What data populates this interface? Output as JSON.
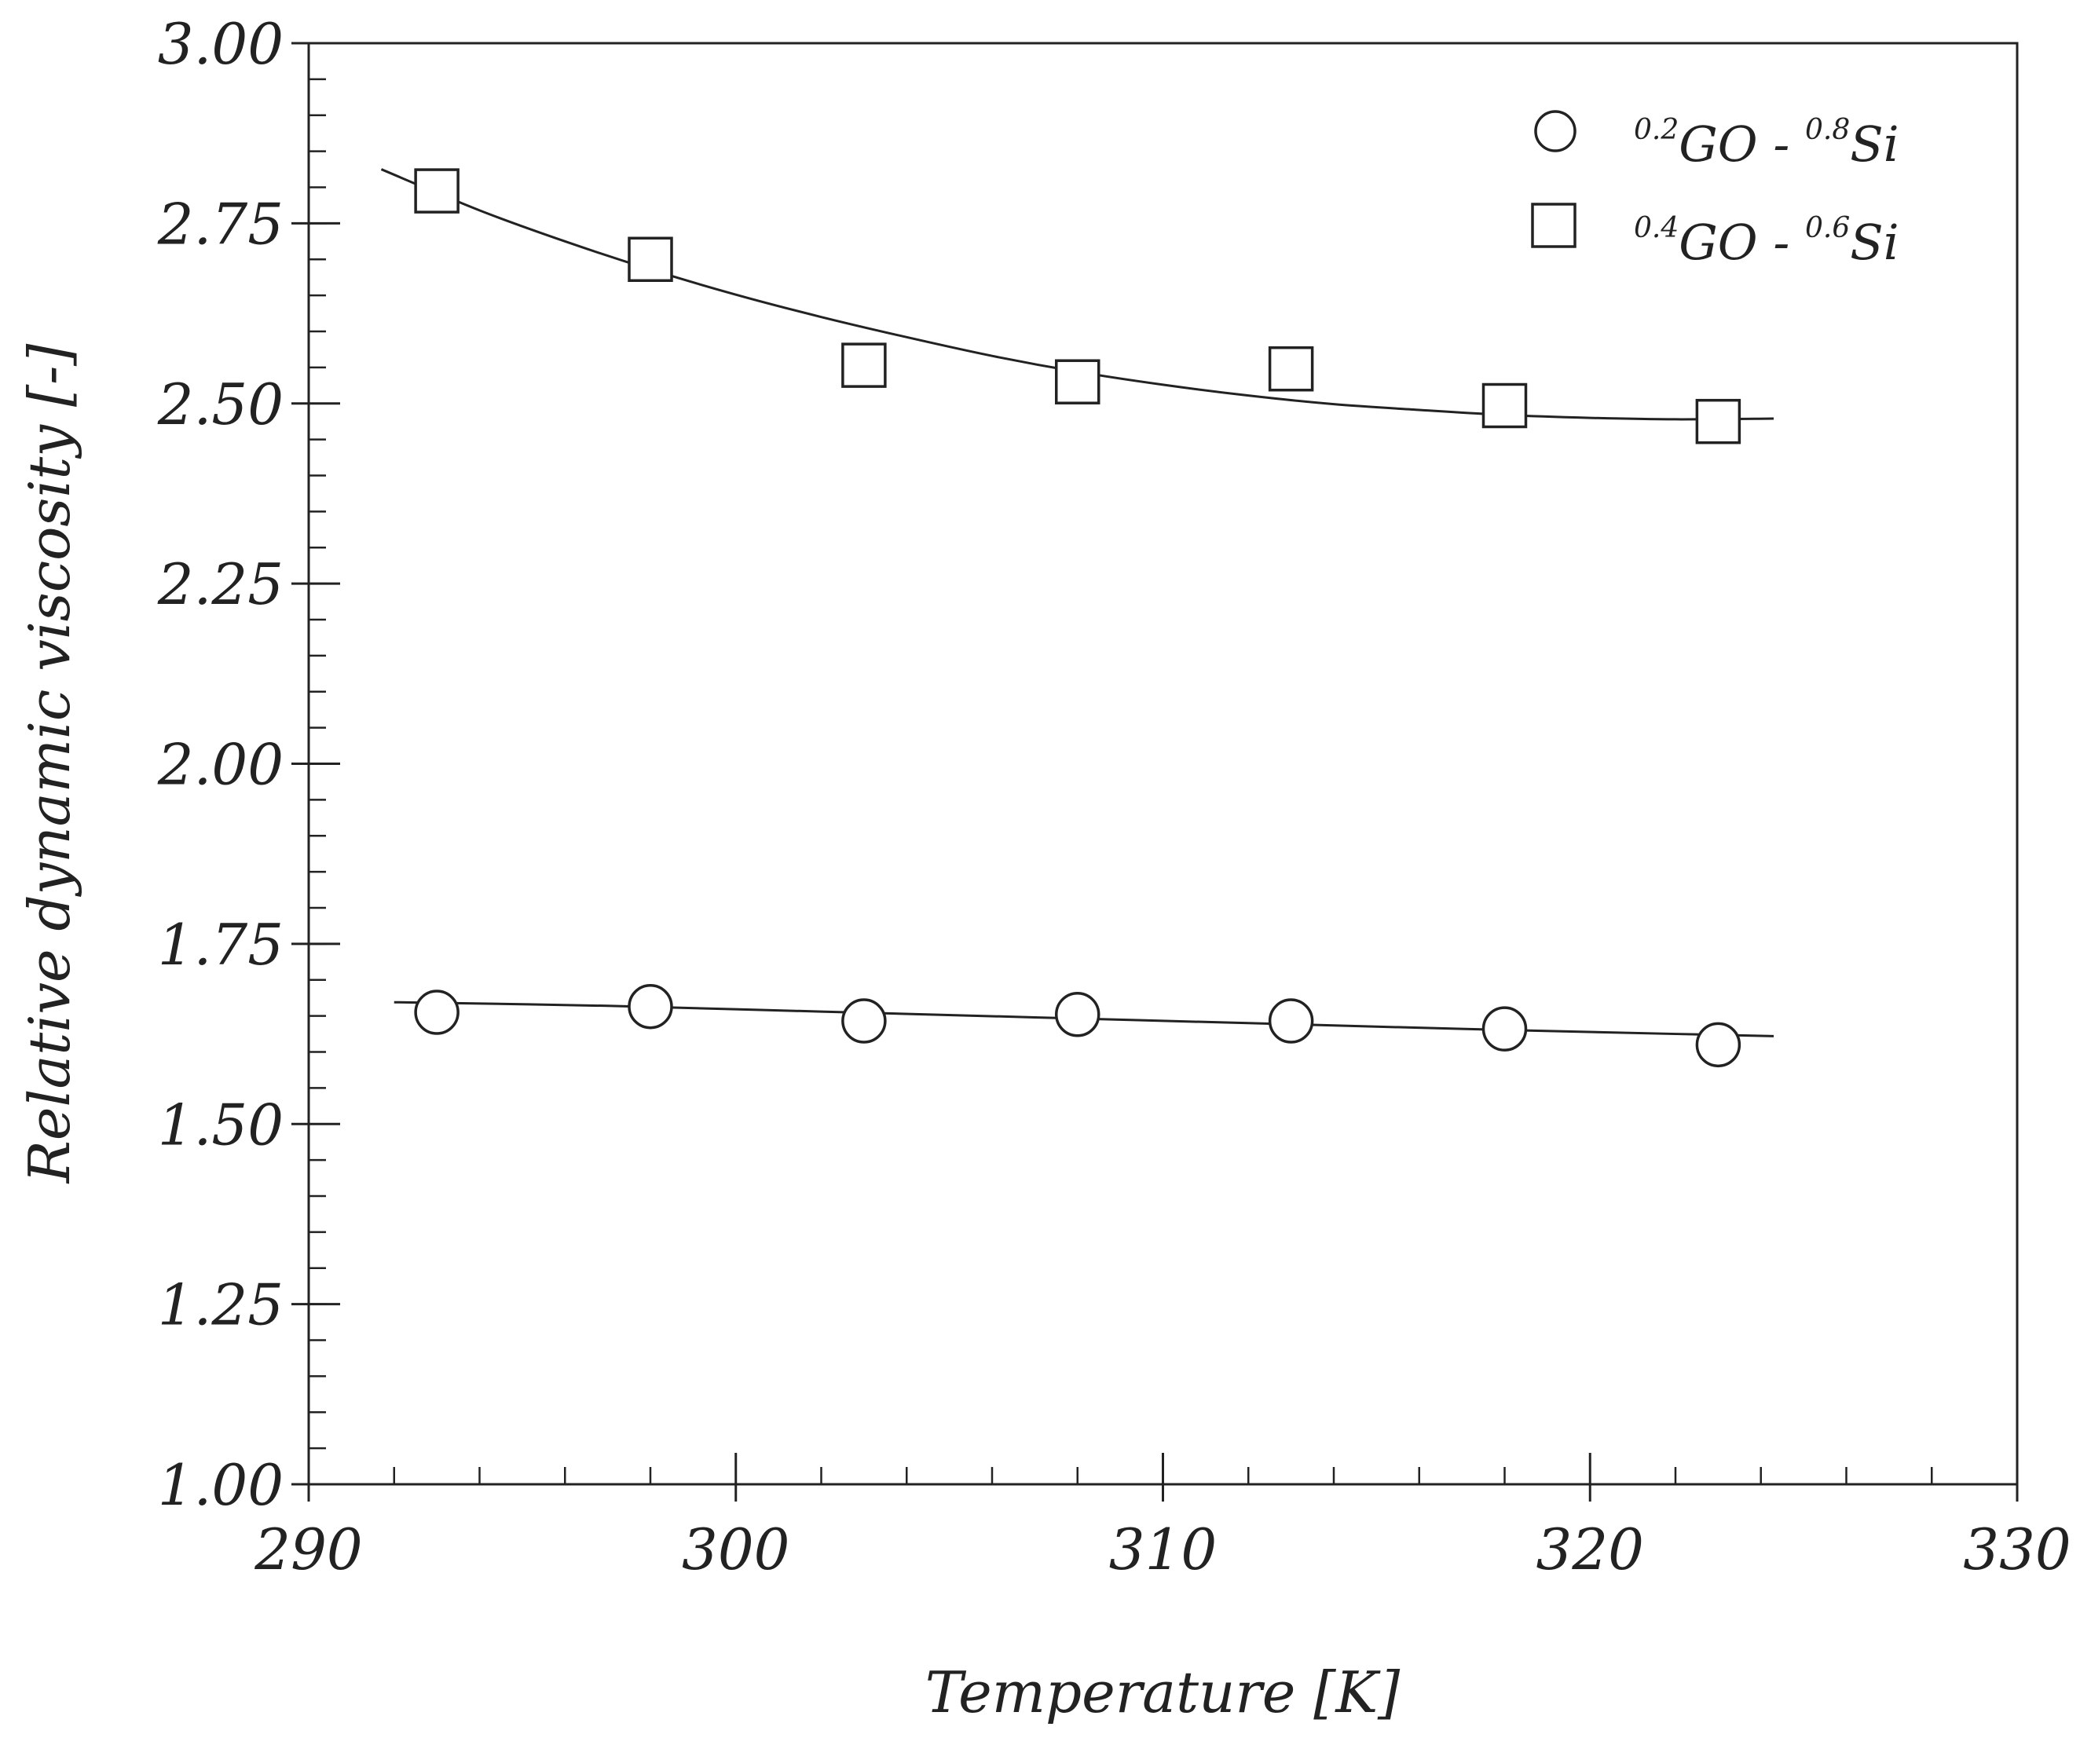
{
  "chart_data": {
    "type": "scatter",
    "title": "",
    "xlabel": "Temperature [K]",
    "ylabel": "Relative dynamic viscosity [-]",
    "xlim": [
      290,
      330
    ],
    "ylim": [
      1.0,
      3.0
    ],
    "x_ticks": [
      "290",
      "300",
      "310",
      "320",
      "330"
    ],
    "y_ticks": [
      "1.00",
      "1.25",
      "1.50",
      "1.75",
      "2.00",
      "2.25",
      "2.50",
      "2.75",
      "3.00"
    ],
    "grid": false,
    "legend_position": "top-right",
    "series": [
      {
        "name": "0.2GO - 0.8Si",
        "legend": {
          "sup1": "0.2",
          "main1": "GO - ",
          "sup2": "0.8",
          "main2": "Si"
        },
        "marker": "circle",
        "x": [
          293,
          298,
          303,
          308,
          313,
          318,
          323
        ],
        "y": [
          1.655,
          1.663,
          1.643,
          1.652,
          1.643,
          1.632,
          1.61
        ],
        "fit_x": [
          292,
          297,
          302,
          307,
          312,
          317,
          322,
          324.3
        ],
        "fit_y": [
          1.669,
          1.664,
          1.656,
          1.648,
          1.64,
          1.632,
          1.625,
          1.622
        ]
      },
      {
        "name": "0.4GO - 0.6Si",
        "legend": {
          "sup1": "0.4",
          "main1": "GO - ",
          "sup2": "0.6",
          "main2": "Si"
        },
        "marker": "square",
        "x": [
          293,
          298,
          303,
          308,
          313,
          318,
          323
        ],
        "y": [
          2.795,
          2.7,
          2.553,
          2.53,
          2.548,
          2.497,
          2.475
        ],
        "fit_x": [
          291.7,
          294,
          296,
          298,
          300,
          302,
          304,
          306,
          308,
          310,
          312,
          314,
          316,
          318,
          320,
          322,
          324.3
        ],
        "fit_y": [
          2.825,
          2.768,
          2.725,
          2.686,
          2.651,
          2.62,
          2.592,
          2.566,
          2.544,
          2.526,
          2.511,
          2.499,
          2.491,
          2.484,
          2.48,
          2.478,
          2.479
        ]
      }
    ]
  }
}
